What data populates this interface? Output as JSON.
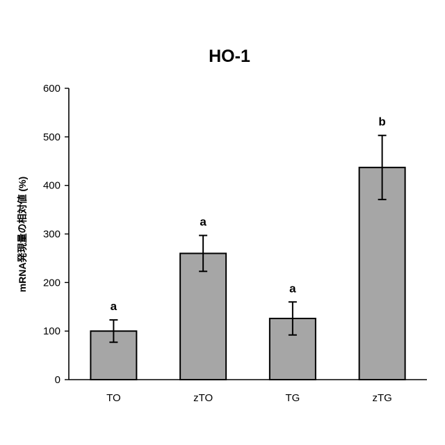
{
  "colors": {
    "bar_fill": "#a6a6a6",
    "bar_stroke": "#000000",
    "axis": "#000000",
    "background": "#ffffff"
  },
  "chart_data": {
    "type": "bar",
    "title": "HO-1",
    "xlabel": "",
    "ylabel": "mRNA発現量の相対値 (%)",
    "categories": [
      "TO",
      "zTO",
      "TG",
      "zTG"
    ],
    "values": [
      100,
      260,
      126,
      437
    ],
    "error": [
      23,
      37,
      34,
      66
    ],
    "significance": [
      "a",
      "a",
      "a",
      "b"
    ],
    "ylim": [
      0,
      600
    ],
    "yticks": [
      0,
      100,
      200,
      300,
      400,
      500,
      600
    ],
    "grid": false,
    "legend": "none"
  }
}
